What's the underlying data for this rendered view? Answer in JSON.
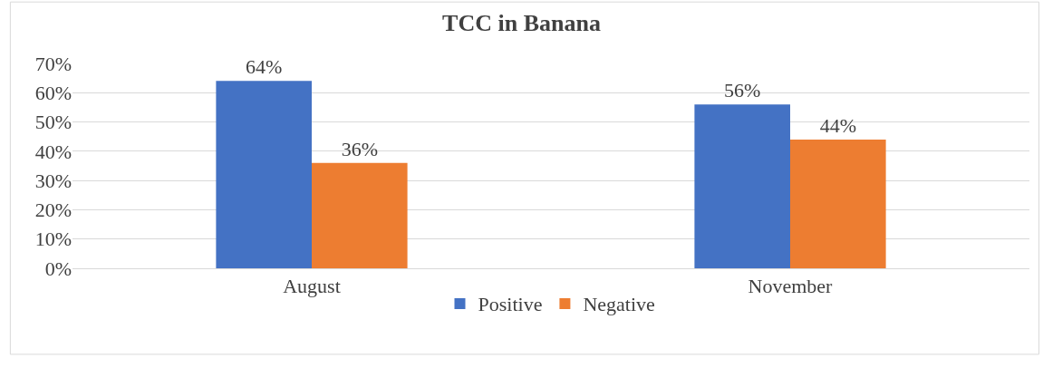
{
  "chart_data": {
    "type": "bar",
    "title": "TCC in Banana",
    "categories": [
      "August",
      "November"
    ],
    "series": [
      {
        "name": "Positive",
        "color": "#4472c4",
        "values": [
          64,
          56
        ],
        "value_labels": [
          "64%",
          "56%"
        ]
      },
      {
        "name": "Negative",
        "color": "#ed7d31",
        "values": [
          36,
          44
        ],
        "value_labels": [
          "36%",
          "44%"
        ]
      }
    ],
    "ylim": [
      0,
      70
    ],
    "yticks": [
      {
        "value": 0,
        "label": "0%"
      },
      {
        "value": 10,
        "label": "10%"
      },
      {
        "value": 20,
        "label": "20%"
      },
      {
        "value": 30,
        "label": "30%"
      },
      {
        "value": 40,
        "label": "40%"
      },
      {
        "value": 50,
        "label": "50%"
      },
      {
        "value": 60,
        "label": "60%"
      },
      {
        "value": 70,
        "label": "70%"
      }
    ],
    "grid": "y",
    "legend": "bottom"
  }
}
